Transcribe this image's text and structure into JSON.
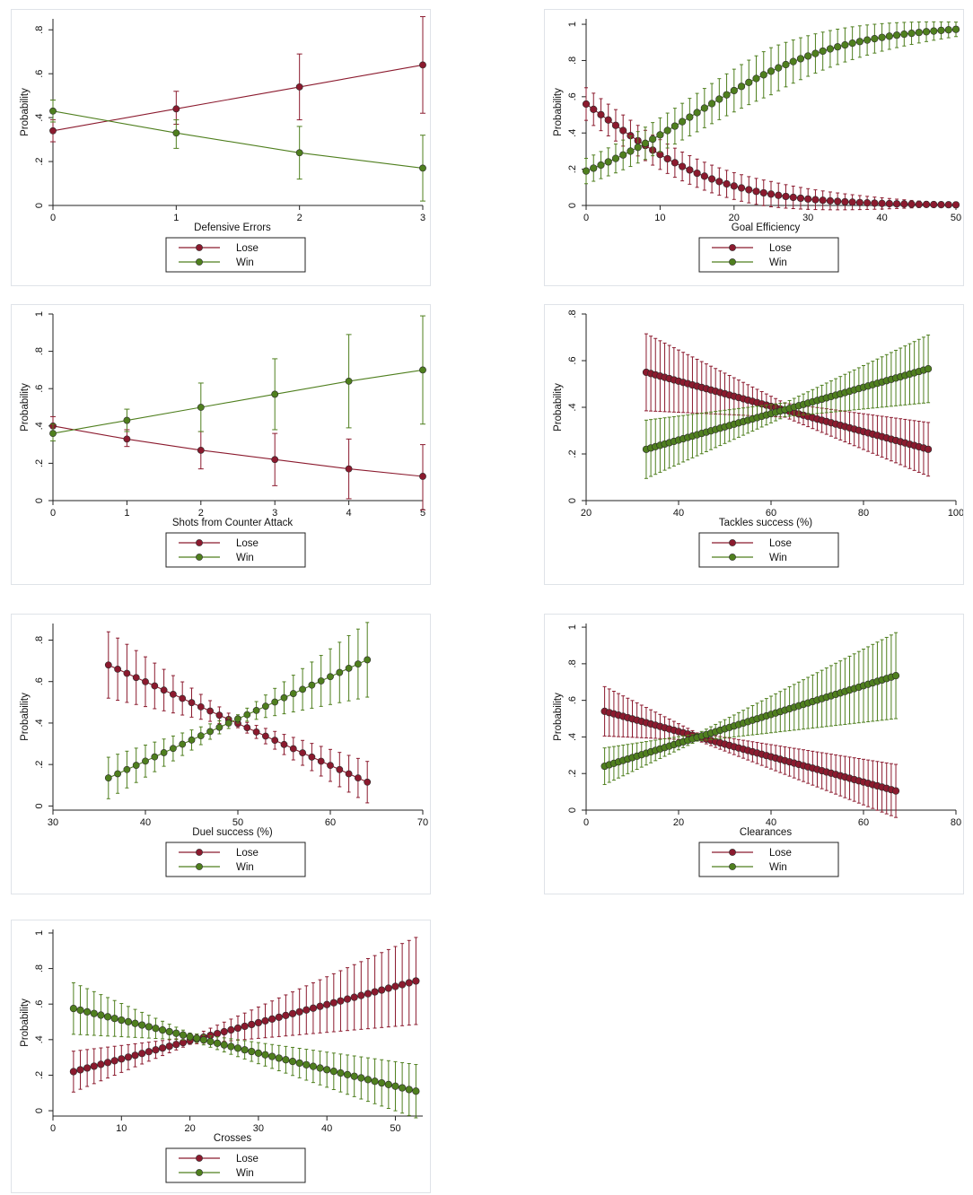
{
  "colors": {
    "lose": "#8b1a2e",
    "win": "#4f7f1e"
  },
  "legend": {
    "lose": "Lose",
    "win": "Win"
  },
  "chart_data": [
    {
      "type": "line",
      "id": "defensive-errors",
      "xlabel": "Defensive Errors",
      "ylabel": "Probability",
      "xlim": [
        0,
        3
      ],
      "ylim": [
        0,
        0.85
      ],
      "xticks": [
        0,
        1,
        2,
        3
      ],
      "xtick_labels": [
        "0",
        "1",
        "2",
        "3"
      ],
      "yticks": [
        0,
        0.2,
        0.4,
        0.6,
        0.8
      ],
      "ytick_labels": [
        "0",
        ".2",
        ".4",
        ".6",
        ".8"
      ],
      "series": [
        {
          "name": "Lose",
          "x": [
            0,
            1,
            2,
            3
          ],
          "values": [
            0.34,
            0.44,
            0.54,
            0.64
          ],
          "ci_low": [
            0.29,
            0.37,
            0.39,
            0.42
          ],
          "ci_high": [
            0.39,
            0.52,
            0.69,
            0.86
          ]
        },
        {
          "name": "Win",
          "x": [
            0,
            1,
            2,
            3
          ],
          "values": [
            0.43,
            0.33,
            0.24,
            0.17
          ],
          "ci_low": [
            0.38,
            0.26,
            0.12,
            0.02
          ],
          "ci_high": [
            0.48,
            0.39,
            0.36,
            0.32
          ]
        }
      ]
    },
    {
      "type": "line",
      "id": "goal-efficiency",
      "xlabel": "Goal Efficiency",
      "ylabel": "Probability",
      "xlim": [
        0,
        50
      ],
      "ylim": [
        0,
        1.03
      ],
      "xticks": [
        0,
        10,
        20,
        30,
        40,
        50
      ],
      "xtick_labels": [
        "0",
        "10",
        "20",
        "30",
        "40",
        "50"
      ],
      "yticks": [
        0,
        0.2,
        0.4,
        0.6,
        0.8,
        1
      ],
      "ytick_labels": [
        "0",
        ".2",
        ".4",
        ".6",
        ".8",
        "1"
      ],
      "series": [
        {
          "name": "Lose",
          "fn": "logistic",
          "x_range": [
            0,
            50
          ],
          "step": 1,
          "logit0": 0.24,
          "slope": -0.118,
          "ci_half": [
            0.09,
            0.07,
            0.005
          ]
        },
        {
          "name": "Win",
          "fn": "logistic",
          "x_range": [
            0,
            50
          ],
          "step": 1,
          "logit0": -1.45,
          "slope": 0.1,
          "ci_half": [
            0.07,
            0.13,
            0.04
          ]
        }
      ]
    },
    {
      "type": "line",
      "id": "shots-counter-attack",
      "xlabel": "Shots from Counter Attack",
      "ylabel": "Probability",
      "xlim": [
        0,
        5
      ],
      "ylim": [
        0,
        1.0
      ],
      "xticks": [
        0,
        1,
        2,
        3,
        4,
        5
      ],
      "xtick_labels": [
        "0",
        "1",
        "2",
        "3",
        "4",
        "5"
      ],
      "yticks": [
        0,
        0.2,
        0.4,
        0.6,
        0.8,
        1
      ],
      "ytick_labels": [
        "0",
        ".2",
        ".4",
        ".6",
        ".8",
        "1"
      ],
      "series": [
        {
          "name": "Lose",
          "x": [
            0,
            1,
            2,
            3,
            4,
            5
          ],
          "values": [
            0.4,
            0.33,
            0.27,
            0.22,
            0.17,
            0.13
          ],
          "ci_low": [
            0.36,
            0.29,
            0.17,
            0.08,
            0.01,
            -0.05
          ],
          "ci_high": [
            0.45,
            0.38,
            0.37,
            0.36,
            0.33,
            0.3
          ]
        },
        {
          "name": "Win",
          "x": [
            0,
            1,
            2,
            3,
            4,
            5
          ],
          "values": [
            0.36,
            0.43,
            0.5,
            0.57,
            0.64,
            0.7
          ],
          "ci_low": [
            0.32,
            0.37,
            0.37,
            0.38,
            0.39,
            0.41
          ],
          "ci_high": [
            0.41,
            0.49,
            0.63,
            0.76,
            0.89,
            0.99
          ]
        }
      ]
    },
    {
      "type": "line",
      "id": "tackles-success",
      "xlabel": "Tackles success (%)",
      "ylabel": "Probability",
      "xlim": [
        20,
        100
      ],
      "ylim": [
        0,
        0.8
      ],
      "xticks": [
        20,
        40,
        60,
        80,
        100
      ],
      "xtick_labels": [
        "20",
        "40",
        "60",
        "80",
        "100"
      ],
      "yticks": [
        0,
        0.2,
        0.4,
        0.6,
        0.8
      ],
      "ytick_labels": [
        "0",
        ".2",
        ".4",
        ".6",
        ".8"
      ],
      "series": [
        {
          "name": "Lose",
          "fn": "linear",
          "x_range": [
            33,
            94
          ],
          "step": 1,
          "y_range": [
            0.55,
            0.22
          ],
          "ci_half": [
            0.165,
            0.03,
            0.115
          ],
          "x_center": 63
        },
        {
          "name": "Win",
          "fn": "linear",
          "x_range": [
            33,
            94
          ],
          "step": 1,
          "y_range": [
            0.22,
            0.565
          ],
          "ci_half": [
            0.125,
            0.03,
            0.145
          ],
          "x_center": 63
        }
      ]
    },
    {
      "type": "line",
      "id": "duel-success",
      "xlabel": "Duel success (%)",
      "ylabel": "Probability",
      "xlim": [
        30,
        70
      ],
      "ylim": [
        -0.02,
        0.88
      ],
      "xticks": [
        30,
        40,
        50,
        60,
        70
      ],
      "xtick_labels": [
        "30",
        "40",
        "50",
        "60",
        "70"
      ],
      "yticks": [
        0,
        0.2,
        0.4,
        0.6,
        0.8
      ],
      "ytick_labels": [
        "0",
        ".2",
        ".4",
        ".6",
        ".8"
      ],
      "series": [
        {
          "name": "Lose",
          "fn": "linear",
          "x_range": [
            36,
            64
          ],
          "step": 1,
          "y_range": [
            0.68,
            0.115
          ],
          "ci_half": [
            0.16,
            0.02,
            0.1
          ],
          "x_center": 50
        },
        {
          "name": "Win",
          "fn": "linear",
          "x_range": [
            36,
            64
          ],
          "step": 1,
          "y_range": [
            0.135,
            0.705
          ],
          "ci_half": [
            0.1,
            0.02,
            0.18
          ],
          "x_center": 50
        }
      ]
    },
    {
      "type": "line",
      "id": "clearances",
      "xlabel": "Clearances",
      "ylabel": "Probability",
      "xlim": [
        0,
        80
      ],
      "ylim": [
        0,
        1.02
      ],
      "xticks": [
        0,
        20,
        40,
        60,
        80
      ],
      "xtick_labels": [
        "0",
        "20",
        "40",
        "60",
        "80"
      ],
      "yticks": [
        0,
        0.2,
        0.4,
        0.6,
        0.8,
        1
      ],
      "ytick_labels": [
        "0",
        ".2",
        ".4",
        ".6",
        ".8",
        "1"
      ],
      "series": [
        {
          "name": "Lose",
          "fn": "linear",
          "x_range": [
            4,
            67
          ],
          "step": 1,
          "y_range": [
            0.54,
            0.105
          ],
          "ci_half": [
            0.135,
            0.02,
            0.145
          ],
          "x_center": 24
        },
        {
          "name": "Win",
          "fn": "linear",
          "x_range": [
            4,
            67
          ],
          "step": 1,
          "y_range": [
            0.24,
            0.735
          ],
          "ci_half": [
            0.1,
            0.02,
            0.235
          ],
          "x_center": 24
        }
      ]
    },
    {
      "type": "line",
      "id": "crosses",
      "xlabel": "Crosses",
      "ylabel": "Probability",
      "xlim": [
        0,
        54
      ],
      "ylim": [
        -0.03,
        1.02
      ],
      "xticks": [
        0,
        10,
        20,
        30,
        40,
        50
      ],
      "xtick_labels": [
        "0",
        "10",
        "20",
        "30",
        "40",
        "50"
      ],
      "yticks": [
        0,
        0.2,
        0.4,
        0.6,
        0.8,
        1
      ],
      "ytick_labels": [
        "0",
        ".2",
        ".4",
        ".6",
        ".8",
        "1"
      ],
      "series": [
        {
          "name": "Lose",
          "fn": "linear",
          "x_range": [
            3,
            53
          ],
          "step": 1,
          "y_range": [
            0.22,
            0.73
          ],
          "ci_half": [
            0.115,
            0.02,
            0.245
          ],
          "x_center": 20
        },
        {
          "name": "Win",
          "fn": "linear",
          "x_range": [
            3,
            53
          ],
          "step": 1,
          "y_range": [
            0.575,
            0.11
          ],
          "ci_half": [
            0.145,
            0.02,
            0.15
          ],
          "x_center": 20
        }
      ]
    }
  ]
}
